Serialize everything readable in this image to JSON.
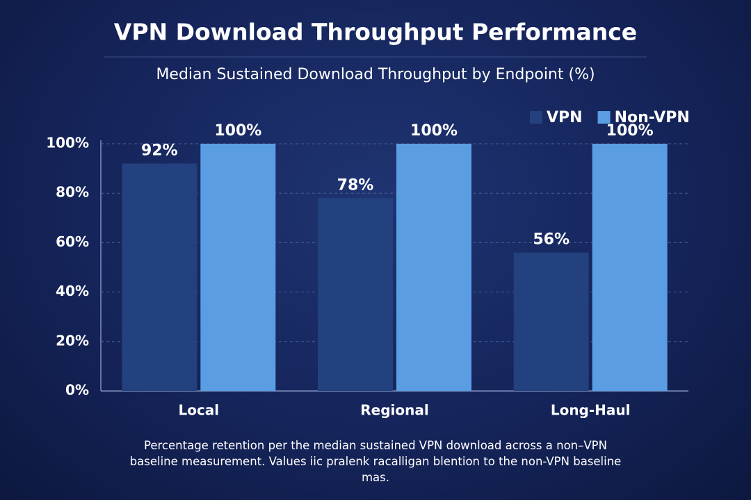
{
  "chart_data": {
    "type": "bar",
    "title": "VPN Download Throughput Performance",
    "subtitle": "Median Sustained Download Throughput by Endpoint (%)",
    "categories": [
      "Local",
      "Regional",
      "Long-Haul"
    ],
    "series": [
      {
        "name": "VPN",
        "color": "#23417e",
        "values": [
          92,
          78,
          56
        ],
        "value_labels": [
          "92%",
          "78%",
          "56%"
        ]
      },
      {
        "name": "Non-VPN",
        "color": "#5a9de2",
        "values": [
          100,
          100,
          100
        ],
        "value_labels": [
          "100%",
          "100%",
          "100%"
        ]
      }
    ],
    "ylim": [
      0,
      100
    ],
    "yticks": [
      {
        "value": 0,
        "label": "0%"
      },
      {
        "value": 20,
        "label": "20%"
      },
      {
        "value": 40,
        "label": "40%"
      },
      {
        "value": 60,
        "label": "60%"
      },
      {
        "value": 80,
        "label": "80%"
      },
      {
        "value": 100,
        "label": "100%"
      }
    ],
    "grid": true,
    "legend": "top-right",
    "note": "Percentage retention per the median sustained VPN download across a non–VPN baseline measurement. Values iic pralenk racalligan blention to the non-VPN baseline mas."
  }
}
